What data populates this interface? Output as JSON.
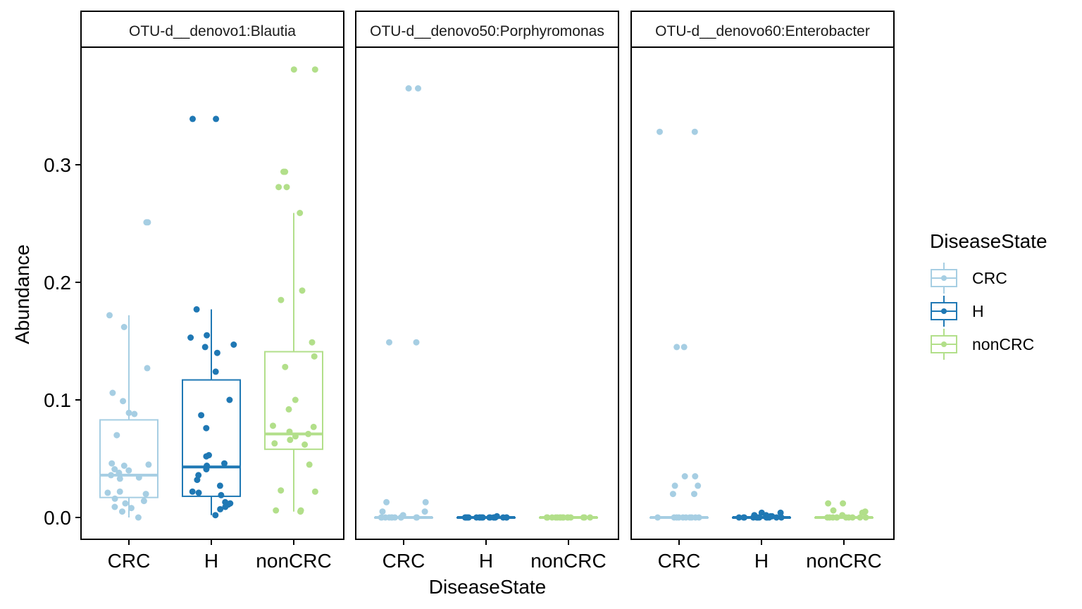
{
  "chart_data": {
    "type": "boxplot-jitter",
    "facet_by": "OTU",
    "xlabel": "DiseaseState",
    "ylabel": "Abundance",
    "categories": [
      "CRC",
      "H",
      "nonCRC"
    ],
    "y_ticks": [
      0.0,
      0.1,
      0.2,
      0.3
    ],
    "y_tick_labels": [
      "0.0",
      "0.1",
      "0.2",
      "0.3"
    ],
    "ylim": [
      -0.017,
      0.4
    ],
    "legend": {
      "title": "DiseaseState",
      "position": "right",
      "entries": [
        {
          "label": "CRC",
          "color": "#a6cee3"
        },
        {
          "label": "H",
          "color": "#1f78b4"
        },
        {
          "label": "nonCRC",
          "color": "#b2df8a"
        }
      ]
    },
    "panels": [
      {
        "title": "OTU-d__denovo1:Blautia",
        "groups": [
          {
            "category": "CRC",
            "color": "#a6cee3",
            "q1": 0.017,
            "median": 0.036,
            "q3": 0.083,
            "whisker_low": 0.0,
            "whisker_high": 0.172,
            "points": [
              0.251,
              0.251,
              0.172,
              0.162,
              0.127,
              0.106,
              0.099,
              0.089,
              0.088,
              0.07,
              0.046,
              0.045,
              0.044,
              0.041,
              0.04,
              0.038,
              0.036,
              0.034,
              0.033,
              0.022,
              0.021,
              0.02,
              0.016,
              0.014,
              0.012,
              0.009,
              0.008,
              0.005,
              0.0
            ]
          },
          {
            "category": "H",
            "color": "#1f78b4",
            "q1": 0.018,
            "median": 0.043,
            "q3": 0.117,
            "whisker_low": 0.002,
            "whisker_high": 0.177,
            "points": [
              0.339,
              0.339,
              0.177,
              0.155,
              0.153,
              0.147,
              0.145,
              0.14,
              0.124,
              0.1,
              0.087,
              0.076,
              0.053,
              0.052,
              0.046,
              0.044,
              0.041,
              0.036,
              0.032,
              0.027,
              0.022,
              0.021,
              0.019,
              0.013,
              0.012,
              0.011,
              0.009,
              0.007,
              0.002
            ]
          },
          {
            "category": "nonCRC",
            "color": "#b2df8a",
            "q1": 0.058,
            "median": 0.071,
            "q3": 0.141,
            "whisker_low": 0.005,
            "whisker_high": 0.259,
            "points": [
              0.381,
              0.381,
              0.294,
              0.294,
              0.281,
              0.281,
              0.259,
              0.193,
              0.185,
              0.149,
              0.137,
              0.128,
              0.1,
              0.092,
              0.078,
              0.077,
              0.073,
              0.071,
              0.069,
              0.066,
              0.063,
              0.062,
              0.045,
              0.023,
              0.022,
              0.006,
              0.006,
              0.005
            ]
          }
        ]
      },
      {
        "title": "OTU-d__denovo50:Porphyromonas",
        "groups": [
          {
            "category": "CRC",
            "color": "#a6cee3",
            "q1": 0.0,
            "median": 0.0,
            "q3": 0.0,
            "whisker_low": 0.0,
            "whisker_high": 0.0,
            "points": [
              0.365,
              0.365,
              0.149,
              0.149,
              0.013,
              0.013,
              0.005,
              0.005,
              0.002,
              0.0,
              0.0,
              0.0,
              0.0,
              0.0,
              0.0,
              0.0,
              0.0,
              0.0,
              0.0,
              0.0
            ]
          },
          {
            "category": "H",
            "color": "#1f78b4",
            "q1": 0.0,
            "median": 0.0,
            "q3": 0.0,
            "whisker_low": 0.0,
            "whisker_high": 0.0,
            "points": [
              0.001,
              0.0,
              0.0,
              0.0,
              0.0,
              0.0,
              0.0,
              0.0,
              0.0,
              0.0,
              0.0,
              0.0,
              0.0,
              0.0,
              0.0,
              0.0,
              0.0,
              0.0
            ]
          },
          {
            "category": "nonCRC",
            "color": "#b2df8a",
            "q1": 0.0,
            "median": 0.0,
            "q3": 0.0,
            "whisker_low": 0.0,
            "whisker_high": 0.0,
            "points": [
              0.0,
              0.0,
              0.0,
              0.0,
              0.0,
              0.0,
              0.0,
              0.0,
              0.0,
              0.0,
              0.0,
              0.0,
              0.0,
              0.0,
              0.0,
              0.0
            ]
          }
        ]
      },
      {
        "title": "OTU-d__denovo60:Enterobacter",
        "groups": [
          {
            "category": "CRC",
            "color": "#a6cee3",
            "q1": 0.0,
            "median": 0.0,
            "q3": 0.0,
            "whisker_low": 0.0,
            "whisker_high": 0.0,
            "points": [
              0.328,
              0.328,
              0.145,
              0.145,
              0.035,
              0.035,
              0.027,
              0.027,
              0.02,
              0.02,
              0.0,
              0.0,
              0.0,
              0.0,
              0.0,
              0.0,
              0.0,
              0.0,
              0.0,
              0.0
            ]
          },
          {
            "category": "H",
            "color": "#1f78b4",
            "q1": 0.0,
            "median": 0.0,
            "q3": 0.0,
            "whisker_low": 0.0,
            "whisker_high": 0.0,
            "points": [
              0.004,
              0.004,
              0.002,
              0.002,
              0.001,
              0.001,
              0.0,
              0.0,
              0.0,
              0.0,
              0.0,
              0.0,
              0.0,
              0.0,
              0.0,
              0.0,
              0.0,
              0.0
            ]
          },
          {
            "category": "nonCRC",
            "color": "#b2df8a",
            "q1": 0.0,
            "median": 0.0,
            "q3": 0.0,
            "whisker_low": 0.0,
            "whisker_high": 0.0,
            "points": [
              0.012,
              0.012,
              0.006,
              0.005,
              0.004,
              0.002,
              0.0,
              0.0,
              0.0,
              0.0,
              0.0,
              0.0,
              0.0,
              0.0,
              0.0,
              0.0
            ]
          }
        ]
      }
    ]
  }
}
